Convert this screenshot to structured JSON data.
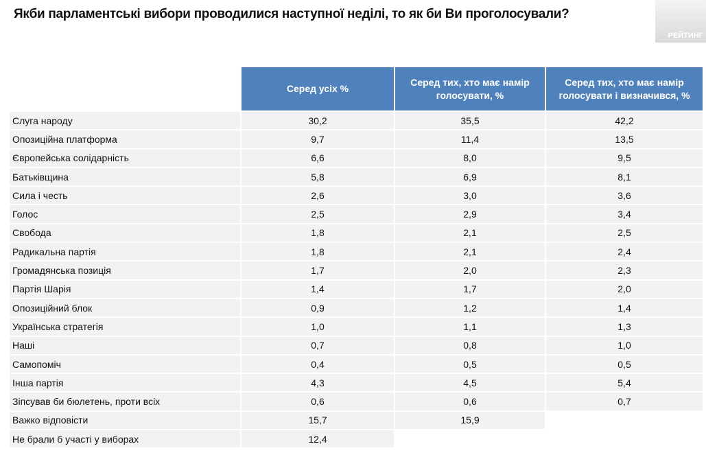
{
  "title": "Якби парламентські вибори проводилися наступної неділі, то як би Ви проголосували?",
  "logo": "РЕЙТИНГ",
  "columns": [
    "Серед усіх %",
    "Серед тих, хто має намір голосувати, %",
    "Серед тих, хто має намір голосувати і визначився, %"
  ],
  "rows": [
    {
      "label": "Слуга народу",
      "values": [
        "30,2",
        "35,5",
        "42,2"
      ]
    },
    {
      "label": "Опозиційна платформа",
      "values": [
        "9,7",
        "11,4",
        "13,5"
      ]
    },
    {
      "label": "Європейська солідарність",
      "values": [
        "6,6",
        "8,0",
        "9,5"
      ]
    },
    {
      "label": "Батьківщина",
      "values": [
        "5,8",
        "6,9",
        "8,1"
      ]
    },
    {
      "label": "Сила і честь",
      "values": [
        "2,6",
        "3,0",
        "3,6"
      ]
    },
    {
      "label": "Голос",
      "values": [
        "2,5",
        "2,9",
        "3,4"
      ]
    },
    {
      "label": "Свобода",
      "values": [
        "1,8",
        "2,1",
        "2,5"
      ]
    },
    {
      "label": "Радикальна партія",
      "values": [
        "1,8",
        "2,1",
        "2,4"
      ]
    },
    {
      "label": "Громадянська позиція",
      "values": [
        "1,7",
        "2,0",
        "2,3"
      ]
    },
    {
      "label": "Партія Шарія",
      "values": [
        "1,4",
        "1,7",
        "2,0"
      ]
    },
    {
      "label": "Опозиційний блок",
      "values": [
        "0,9",
        "1,2",
        "1,4"
      ]
    },
    {
      "label": "Українська стратегія",
      "values": [
        "1,0",
        "1,1",
        "1,3"
      ]
    },
    {
      "label": "Наші",
      "values": [
        "0,7",
        "0,8",
        "1,0"
      ]
    },
    {
      "label": "Самопоміч",
      "values": [
        "0,4",
        "0,5",
        "0,5"
      ]
    },
    {
      "label": "Інша партія",
      "values": [
        "4,3",
        "4,5",
        "5,4"
      ]
    },
    {
      "label": "Зіпсував би бюлетень, проти всіх",
      "values": [
        "0,6",
        "0,6",
        "0,7"
      ]
    },
    {
      "label": "Важко відповісти",
      "values": [
        "15,7",
        "15,9",
        null
      ]
    },
    {
      "label": "Не брали б участі у виборах",
      "values": [
        "12,4",
        null,
        null
      ]
    }
  ],
  "colors": {
    "header": "#4f81bd",
    "row": "#f2f2f2"
  }
}
